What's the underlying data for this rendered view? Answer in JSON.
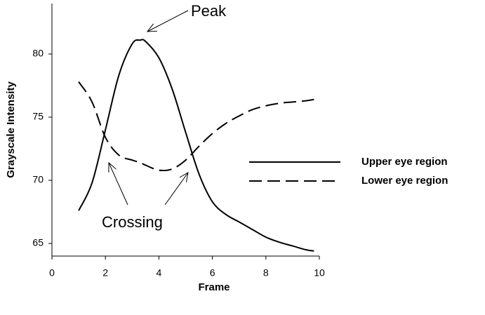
{
  "chart_data": {
    "type": "line",
    "xlabel": "Frame",
    "ylabel": "Grayscale Intensity",
    "x": [
      1,
      1.5,
      2,
      2.5,
      3,
      3.3,
      3.5,
      4,
      4.5,
      5,
      5.5,
      6,
      6.5,
      7,
      7.5,
      8,
      8.5,
      9,
      9.5,
      9.8
    ],
    "series": [
      {
        "name": "Upper eye region",
        "color": "#000000",
        "dash": "solid",
        "values": [
          67.6,
          69.8,
          74,
          78.3,
          80.8,
          81.1,
          81,
          79.7,
          77.2,
          73.8,
          70.5,
          68.3,
          67.3,
          66.7,
          66.1,
          65.5,
          65.1,
          64.8,
          64.5,
          64.4
        ]
      },
      {
        "name": "Lower eye region",
        "color": "#000000",
        "dash": "dashed",
        "values": [
          77.8,
          76.2,
          73.4,
          72,
          71.6,
          71.4,
          71.2,
          70.8,
          70.9,
          71.6,
          72.7,
          73.7,
          74.5,
          75.1,
          75.6,
          75.9,
          76.1,
          76.2,
          76.3,
          76.4
        ]
      }
    ],
    "xlim": [
      0,
      10
    ],
    "xticks": [
      0,
      2,
      4,
      6,
      8,
      10
    ],
    "ylim": [
      64,
      84
    ],
    "yticks": [
      65,
      70,
      75,
      80
    ],
    "annotations": [
      "Peak",
      "Crossing"
    ],
    "legend": "right"
  }
}
